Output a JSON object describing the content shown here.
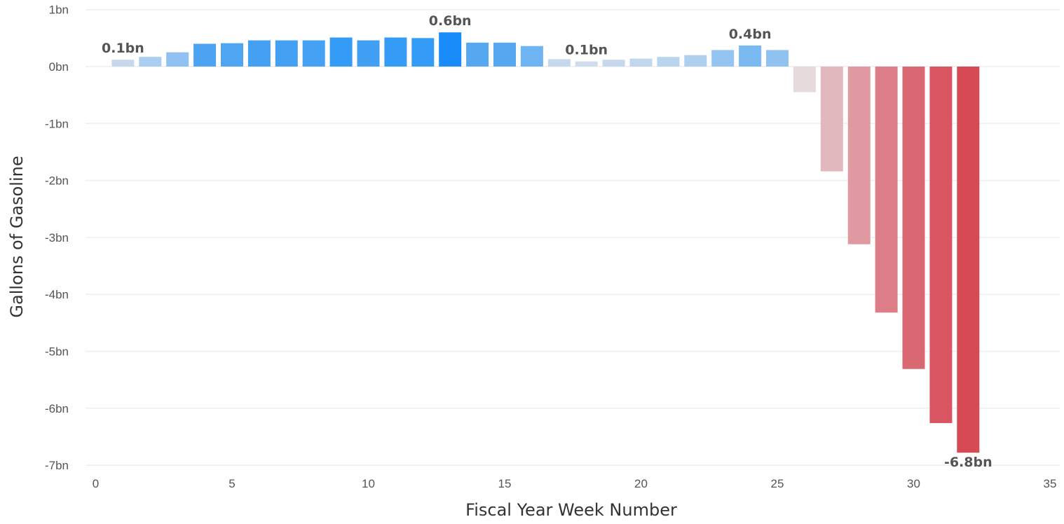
{
  "chart_data": {
    "type": "bar",
    "xlabel": "Fiscal Year Week Number",
    "ylabel": "Gallons of Gasoline",
    "xlim": [
      0,
      35
    ],
    "ylim": [
      -7,
      1
    ],
    "grid": true,
    "x_ticks": [
      {
        "value": 0,
        "label": "0"
      },
      {
        "value": 5,
        "label": "5"
      },
      {
        "value": 10,
        "label": "10"
      },
      {
        "value": 15,
        "label": "15"
      },
      {
        "value": 20,
        "label": "20"
      },
      {
        "value": 25,
        "label": "25"
      },
      {
        "value": 30,
        "label": "30"
      },
      {
        "value": 35,
        "label": "35"
      }
    ],
    "y_ticks": [
      {
        "value": 1,
        "label": "1bn"
      },
      {
        "value": 0,
        "label": "0bn"
      },
      {
        "value": -1,
        "label": "-1bn"
      },
      {
        "value": -2,
        "label": "-2bn"
      },
      {
        "value": -3,
        "label": "-3bn"
      },
      {
        "value": -4,
        "label": "-4bn"
      },
      {
        "value": -5,
        "label": "-5bn"
      },
      {
        "value": -6,
        "label": "-6bn"
      },
      {
        "value": -7,
        "label": "-7bn"
      }
    ],
    "x": [
      1,
      2,
      3,
      4,
      5,
      6,
      7,
      8,
      9,
      10,
      11,
      12,
      13,
      14,
      15,
      16,
      17,
      18,
      19,
      20,
      21,
      22,
      23,
      24,
      25,
      26,
      27,
      28,
      29,
      30,
      31,
      32
    ],
    "values": [
      0.12,
      0.17,
      0.25,
      0.4,
      0.41,
      0.46,
      0.46,
      0.46,
      0.51,
      0.46,
      0.51,
      0.5,
      0.6,
      0.42,
      0.42,
      0.36,
      0.13,
      0.09,
      0.12,
      0.14,
      0.17,
      0.2,
      0.29,
      0.37,
      0.29,
      -0.45,
      -1.84,
      -3.12,
      -4.32,
      -5.31,
      -6.26,
      -6.78
    ],
    "colors": [
      "#c6d9ec",
      "#a9cef1",
      "#8fc2f2",
      "#4ba3f2",
      "#4ea5f2",
      "#44a0f3",
      "#43a0f3",
      "#45a1f3",
      "#349bf6",
      "#41a0f4",
      "#349bf6",
      "#349bf6",
      "#1a8cf9",
      "#56a8f1",
      "#56a8f1",
      "#6fb4f2",
      "#c6d9ec",
      "#cfdced",
      "#c6d9ec",
      "#c0d7ec",
      "#b9d4ed",
      "#aed0ef",
      "#94c4f1",
      "#7ab9f2",
      "#90c3f1",
      "#e6dadc",
      "#e2b8bf",
      "#de9aa0",
      "#dd7d87",
      "#d96872",
      "#d85561",
      "#d64a56"
    ],
    "annotations": [
      {
        "x": 1,
        "text": "0.1bn"
      },
      {
        "x": 13,
        "text": "0.6bn"
      },
      {
        "x": 18,
        "text": "0.1bn"
      },
      {
        "x": 24,
        "text": "0.4bn"
      },
      {
        "x": 32,
        "text": "-6.8bn"
      }
    ]
  }
}
